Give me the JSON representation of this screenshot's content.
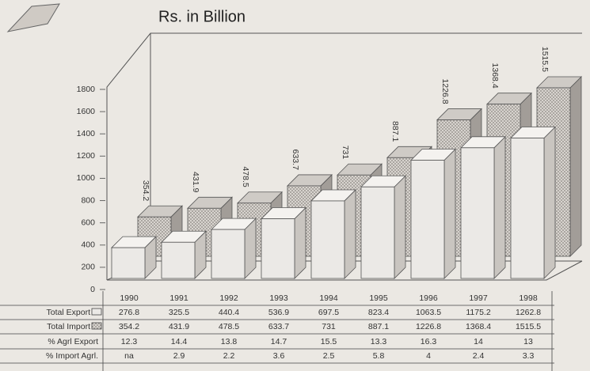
{
  "chart_data": {
    "type": "bar3d",
    "title": "Rs. in Billion",
    "categories": [
      "1990",
      "1991",
      "1992",
      "1993",
      "1994",
      "1995",
      "1996",
      "1997",
      "1998"
    ],
    "series": [
      {
        "name": "Total Export",
        "color": "#ebe9e6",
        "values": [
          276.8,
          325.5,
          440.4,
          536.9,
          697.5,
          823.4,
          1063.5,
          1175.2,
          1262.8
        ]
      },
      {
        "name": "Total Import",
        "color": "#bdb8b3",
        "values": [
          354.2,
          431.9,
          478.5,
          633.7,
          731,
          887.1,
          1226.8,
          1368.4,
          1515.5
        ]
      }
    ],
    "table_rows": [
      {
        "name": "% Agrl Export",
        "values": [
          "12.3",
          "14.4",
          "13.8",
          "14.7",
          "15.5",
          "13.3",
          "16.3",
          "14",
          "13"
        ]
      },
      {
        "name": "% Import Agrl.",
        "values": [
          "na",
          "2.9",
          "2.2",
          "3.6",
          "2.5",
          "5.8",
          "4",
          "2.4",
          "3.3"
        ]
      }
    ],
    "ylim": [
      0,
      1800
    ],
    "yticks": [
      0,
      200,
      400,
      600,
      800,
      1000,
      1200,
      1400,
      1600,
      1800
    ]
  }
}
